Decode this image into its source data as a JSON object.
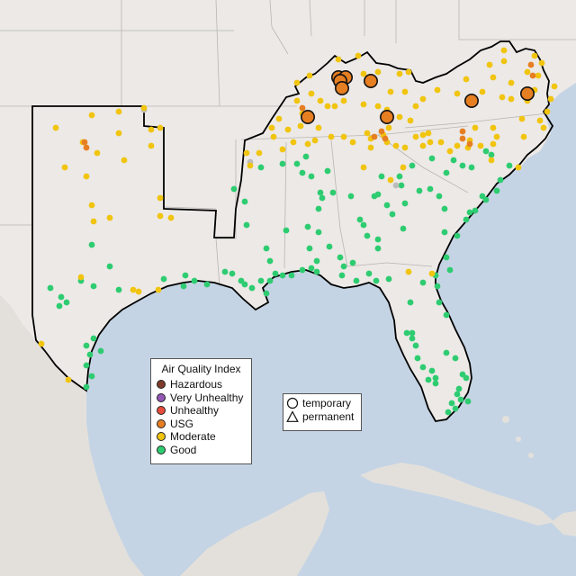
{
  "legend": {
    "title": "Air Quality Index",
    "categories": [
      {
        "label": "Hazardous",
        "color": "#7e3b2a"
      },
      {
        "label": "Very Unhealthy",
        "color": "#9457b4"
      },
      {
        "label": "Unhealthy",
        "color": "#e74c3c"
      },
      {
        "label": "USG",
        "color": "#e67e22"
      },
      {
        "label": "Moderate",
        "color": "#f1c40f"
      },
      {
        "label": "Good",
        "color": "#2ecc71"
      }
    ]
  },
  "monitor_types": {
    "temporary": "temporary",
    "permanent": "permanent"
  },
  "colors": {
    "ocean": "#c5d4e4",
    "land": "#ece9e6",
    "mexico_land": "#e3e0dc",
    "unmonitored": "#bcbcbc"
  },
  "icons": {
    "temporary": "circle-icon",
    "permanent": "triangle-icon"
  }
}
